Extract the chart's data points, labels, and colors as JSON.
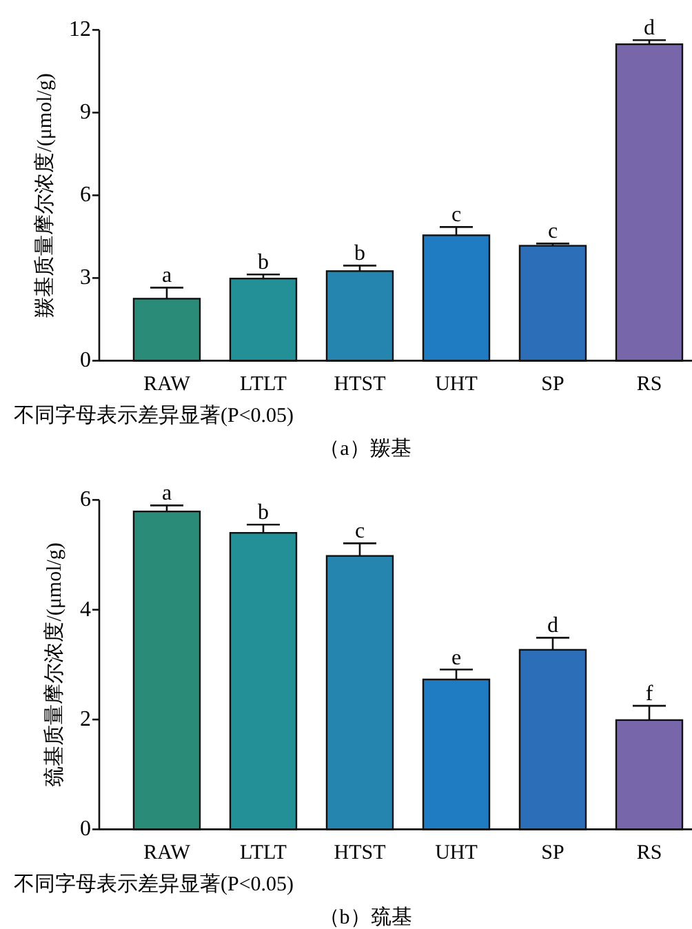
{
  "chart_data": [
    {
      "type": "bar",
      "title": "（a）羰基",
      "ylabel": "羰基质量摩尔浓度/(μmol/g)",
      "categories": [
        "RAW",
        "LTLT",
        "HTST",
        "UHT",
        "SP",
        "RS"
      ],
      "values": [
        2.25,
        2.98,
        3.25,
        4.55,
        4.17,
        11.48
      ],
      "errors": [
        [
          2.25,
          2.65
        ],
        [
          2.98,
          3.13
        ],
        [
          3.25,
          3.45
        ],
        [
          4.55,
          4.85
        ],
        [
          4.17,
          4.25
        ],
        [
          11.48,
          11.63
        ]
      ],
      "colors": [
        "#2a8c78",
        "#238f96",
        "#2585ae",
        "#1f7cc2",
        "#2c6fb8",
        "#7866aa"
      ],
      "ylim": [
        0,
        12
      ],
      "yticks": [
        0,
        3,
        6,
        9,
        12
      ],
      "annotations": [
        {
          "text": "a",
          "x": "RAW",
          "y": 2.65
        },
        {
          "text": "b",
          "x": "LTLT",
          "y": 3.13
        },
        {
          "text": "b",
          "x": "HTST",
          "y": 3.45
        },
        {
          "text": "c",
          "x": "UHT",
          "y": 4.85
        },
        {
          "text": "c",
          "x": "SP",
          "y": 4.25
        },
        {
          "text": "d",
          "x": "RS",
          "y": 11.63
        },
        "不同字母表示差异显著(P<0.05)"
      ]
    },
    {
      "type": "bar",
      "title": "（b）巯基",
      "ylabel": "巯基质量摩尔浓度/(μmol/g)",
      "categories": [
        "RAW",
        "LTLT",
        "HTST",
        "UHT",
        "SP",
        "RS"
      ],
      "values": [
        5.79,
        5.4,
        4.98,
        2.73,
        3.27,
        1.99
      ],
      "errors": [
        [
          5.79,
          5.9
        ],
        [
          5.4,
          5.55
        ],
        [
          4.98,
          5.21
        ],
        [
          2.73,
          2.91
        ],
        [
          3.27,
          3.49
        ],
        [
          1.99,
          2.25
        ]
      ],
      "colors": [
        "#2a8c78",
        "#238f96",
        "#2585ae",
        "#1f7cc2",
        "#2c6fb8",
        "#7866aa"
      ],
      "ylim": [
        0,
        6
      ],
      "yticks": [
        0,
        2,
        4,
        6
      ],
      "annotations": [
        {
          "text": "a",
          "x": "RAW",
          "y": 5.9
        },
        {
          "text": "b",
          "x": "LTLT",
          "y": 5.55
        },
        {
          "text": "c",
          "x": "HTST",
          "y": 5.21
        },
        {
          "text": "e",
          "x": "UHT",
          "y": 2.91
        },
        {
          "text": "d",
          "x": "SP",
          "y": 3.49
        },
        {
          "text": "f",
          "x": "RS",
          "y": 2.25
        },
        "不同字母表示差异显著(P<0.05)"
      ]
    }
  ]
}
